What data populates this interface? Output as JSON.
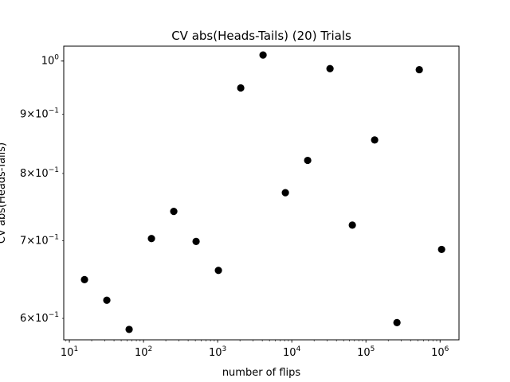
{
  "chart_data": {
    "type": "scatter",
    "title": "CV  abs(Heads-Tails) (20) Trials",
    "xlabel": "number of flips",
    "ylabel": "CV abs(Heads-Tails)",
    "xscale": "log",
    "yscale": "log",
    "xlim": [
      8.4,
      1800000
    ],
    "ylim": [
      0.575,
      1.03
    ],
    "grid": false,
    "marker_color": "#000000",
    "x_ticks": [
      {
        "value": 10,
        "base": "10",
        "exp": "1"
      },
      {
        "value": 100,
        "base": "10",
        "exp": "2"
      },
      {
        "value": 1000,
        "base": "10",
        "exp": "3"
      },
      {
        "value": 10000,
        "base": "10",
        "exp": "4"
      },
      {
        "value": 100000,
        "base": "10",
        "exp": "5"
      },
      {
        "value": 1000000,
        "base": "10",
        "exp": "6"
      }
    ],
    "y_ticks": [
      {
        "value": 0.6,
        "mant": "6",
        "base": "10",
        "exp": "−1"
      },
      {
        "value": 0.7,
        "mant": "7",
        "base": "10",
        "exp": "−1"
      },
      {
        "value": 0.8,
        "mant": "8",
        "base": "10",
        "exp": "−1"
      },
      {
        "value": 0.9,
        "mant": "9",
        "base": "10",
        "exp": "−1"
      },
      {
        "value": 1.0,
        "mant": "",
        "base": "10",
        "exp": "0"
      }
    ],
    "x": [
      16,
      32,
      64,
      128,
      256,
      512,
      1024,
      2048,
      4096,
      8192,
      16384,
      32768,
      65536,
      131072,
      262144,
      524288,
      1048576
    ],
    "y": [
      0.648,
      0.622,
      0.587,
      0.703,
      0.742,
      0.699,
      0.66,
      0.948,
      1.012,
      0.77,
      0.821,
      0.985,
      0.722,
      0.855,
      0.595,
      0.983,
      0.688
    ]
  }
}
